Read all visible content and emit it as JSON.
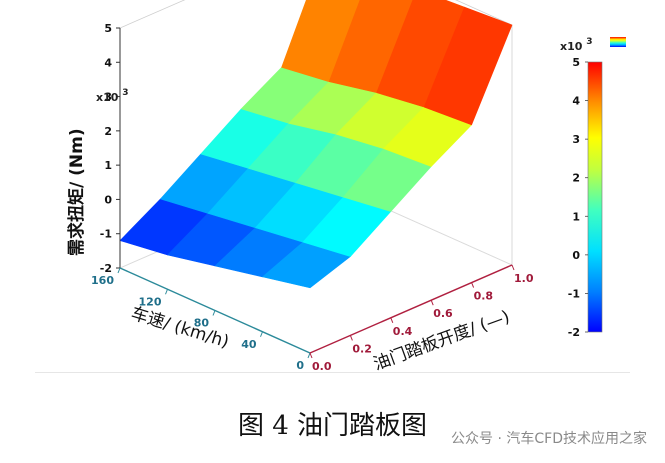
{
  "figure": {
    "caption": "图 4  油门踏板图",
    "watermark": "公众号 · 汽车CFD技术应用之家"
  },
  "chart_data": {
    "type": "surface",
    "zlabel": "需求扭矩/ (Nm)",
    "xlabel": "油门踏板开度/ (—)",
    "ylabel": "车速/ (km/h)",
    "z_multiplier_label": "x10",
    "z_multiplier_exp": "3",
    "z_ticks": [
      -2,
      -1,
      0,
      1,
      2,
      3,
      4,
      5
    ],
    "x_ticks": [
      "0.0",
      "0.2",
      "0.4",
      "0.6",
      "0.8",
      "1.0"
    ],
    "y_ticks": [
      "0",
      "40",
      "80",
      "120",
      "160"
    ],
    "zlim": [
      -2,
      5
    ],
    "xlim": [
      0,
      1
    ],
    "ylim": [
      0,
      160
    ],
    "colorbar": {
      "ticks": [
        -2,
        -1,
        0,
        1,
        2,
        3,
        4,
        5
      ],
      "multiplier_label": "x10",
      "multiplier_exp": "3",
      "colormap": "jet"
    },
    "grid": {
      "pedal": [
        0.0,
        0.2,
        0.4,
        0.6,
        0.8,
        1.0
      ],
      "speed": [
        0,
        40,
        80,
        120,
        160
      ],
      "torque": [
        [
          -0.1,
          0.3,
          1.1,
          1.9,
          2.6,
          5.0
        ],
        [
          -0.4,
          0.1,
          0.9,
          1.8,
          2.5,
          4.9
        ],
        [
          -0.7,
          -0.1,
          0.7,
          1.6,
          2.3,
          4.8
        ],
        [
          -1.0,
          -0.3,
          0.5,
          1.3,
          2.0,
          4.6
        ],
        [
          -1.2,
          -0.5,
          0.3,
          1.1,
          1.8,
          4.5
        ]
      ]
    }
  }
}
